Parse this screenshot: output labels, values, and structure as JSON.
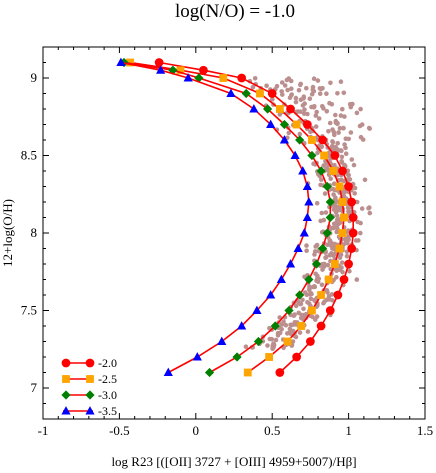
{
  "chart_data": {
    "type": "scatter",
    "title": "log(N/O) = -1.0",
    "xlabel": "log R23 [([OII] 3727 + [OIII] 4959+5007)/Hβ]",
    "ylabel": "12+log(O/H)",
    "xlim": [
      -1,
      1.5
    ],
    "ylim": [
      6.8,
      9.2
    ],
    "xticks": [
      -1,
      -0.5,
      0,
      0.5,
      1,
      1.5
    ],
    "xtick_labels": [
      "-1",
      "-0.5",
      "0",
      "0.5",
      "1",
      "1.5"
    ],
    "yticks": [
      7,
      7.5,
      8,
      8.5,
      9
    ],
    "ytick_labels": [
      "7",
      "7.5",
      "8",
      "8.5",
      "9"
    ],
    "grid": false,
    "legend_position": "bottom-left",
    "colors": {
      "line": "#ff0000",
      "points": "#bc8f8f",
      "s1": "#ff0000",
      "s2": "#ffa500",
      "s3": "#008000",
      "s4": "#0000ff"
    },
    "series": [
      {
        "name": "-2.0",
        "marker": "circle",
        "color": "#ff0000",
        "points": [
          [
            -0.24,
            9.1
          ],
          [
            0.05,
            9.05
          ],
          [
            0.3,
            9.0
          ],
          [
            0.5,
            8.9
          ],
          [
            0.62,
            8.8
          ],
          [
            0.73,
            8.7
          ],
          [
            0.83,
            8.6
          ],
          [
            0.91,
            8.5
          ],
          [
            0.96,
            8.4
          ],
          [
            1.0,
            8.3
          ],
          [
            1.02,
            8.2
          ],
          [
            1.03,
            8.1
          ],
          [
            1.03,
            8.0
          ],
          [
            1.02,
            7.9
          ],
          [
            1.0,
            7.8
          ],
          [
            0.97,
            7.7
          ],
          [
            0.93,
            7.6
          ],
          [
            0.88,
            7.5
          ],
          [
            0.82,
            7.4
          ],
          [
            0.75,
            7.3
          ],
          [
            0.66,
            7.2
          ],
          [
            0.55,
            7.1
          ]
        ]
      },
      {
        "name": "-2.5",
        "marker": "square",
        "color": "#ffa500",
        "points": [
          [
            -0.43,
            9.1
          ],
          [
            -0.1,
            9.05
          ],
          [
            0.18,
            9.0
          ],
          [
            0.42,
            8.9
          ],
          [
            0.55,
            8.8
          ],
          [
            0.66,
            8.7
          ],
          [
            0.76,
            8.6
          ],
          [
            0.84,
            8.5
          ],
          [
            0.9,
            8.4
          ],
          [
            0.94,
            8.3
          ],
          [
            0.96,
            8.2
          ],
          [
            0.97,
            8.1
          ],
          [
            0.96,
            8.0
          ],
          [
            0.94,
            7.9
          ],
          [
            0.91,
            7.8
          ],
          [
            0.87,
            7.7
          ],
          [
            0.82,
            7.6
          ],
          [
            0.76,
            7.5
          ],
          [
            0.69,
            7.4
          ],
          [
            0.6,
            7.3
          ],
          [
            0.48,
            7.2
          ],
          [
            0.34,
            7.1
          ]
        ]
      },
      {
        "name": "-3.0",
        "marker": "diamond",
        "color": "#008000",
        "points": [
          [
            -0.47,
            9.1
          ],
          [
            -0.15,
            9.05
          ],
          [
            0.02,
            9.0
          ],
          [
            0.33,
            8.9
          ],
          [
            0.47,
            8.8
          ],
          [
            0.58,
            8.7
          ],
          [
            0.68,
            8.6
          ],
          [
            0.76,
            8.5
          ],
          [
            0.82,
            8.4
          ],
          [
            0.86,
            8.3
          ],
          [
            0.88,
            8.2
          ],
          [
            0.88,
            8.1
          ],
          [
            0.86,
            8.0
          ],
          [
            0.83,
            7.9
          ],
          [
            0.79,
            7.8
          ],
          [
            0.74,
            7.7
          ],
          [
            0.68,
            7.6
          ],
          [
            0.61,
            7.5
          ],
          [
            0.52,
            7.4
          ],
          [
            0.41,
            7.3
          ],
          [
            0.27,
            7.2
          ],
          [
            0.09,
            7.1
          ]
        ]
      },
      {
        "name": "-3.5",
        "marker": "triangle",
        "color": "#0000ff",
        "points": [
          [
            -0.49,
            9.1
          ],
          [
            -0.23,
            9.05
          ],
          [
            -0.05,
            9.0
          ],
          [
            0.23,
            8.9
          ],
          [
            0.38,
            8.8
          ],
          [
            0.49,
            8.7
          ],
          [
            0.58,
            8.6
          ],
          [
            0.65,
            8.5
          ],
          [
            0.7,
            8.4
          ],
          [
            0.73,
            8.3
          ],
          [
            0.74,
            8.2
          ],
          [
            0.73,
            8.1
          ],
          [
            0.71,
            8.0
          ],
          [
            0.67,
            7.9
          ],
          [
            0.62,
            7.8
          ],
          [
            0.56,
            7.7
          ],
          [
            0.49,
            7.6
          ],
          [
            0.4,
            7.5
          ],
          [
            0.3,
            7.4
          ],
          [
            0.17,
            7.3
          ],
          [
            0.01,
            7.2
          ],
          [
            -0.18,
            7.1
          ]
        ]
      }
    ]
  }
}
